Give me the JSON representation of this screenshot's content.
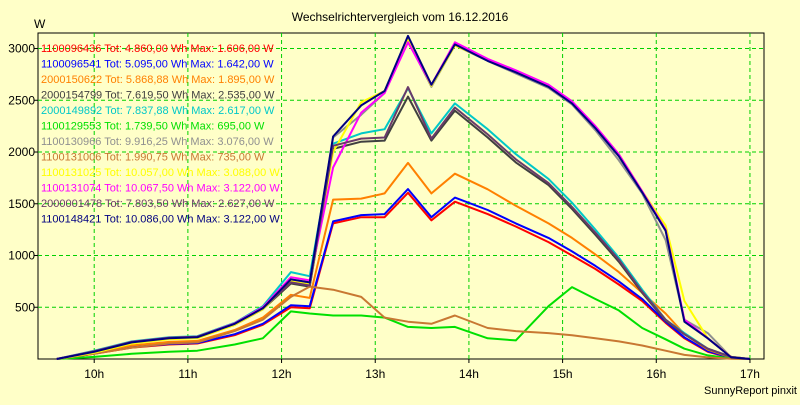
{
  "chart_data": {
    "type": "line",
    "title": "Wechselrichtervergleich vom 16.12.2016",
    "ylabel": "W",
    "xlabel": "",
    "footer": "SunnyReport pinxit",
    "x_range_hours": [
      9.4,
      17.15
    ],
    "ylim": [
      0,
      3150
    ],
    "x_ticks": [
      {
        "label": "10h",
        "hour": 10
      },
      {
        "label": "11h",
        "hour": 11
      },
      {
        "label": "12h",
        "hour": 12
      },
      {
        "label": "13h",
        "hour": 13
      },
      {
        "label": "14h",
        "hour": 14
      },
      {
        "label": "15h",
        "hour": 15
      },
      {
        "label": "16h",
        "hour": 16
      },
      {
        "label": "17h",
        "hour": 17
      }
    ],
    "y_ticks": [
      500,
      1000,
      1500,
      2000,
      2500,
      3000
    ],
    "grid": true,
    "legend_position": "top-left",
    "x": [
      9.6,
      10.0,
      10.4,
      10.8,
      11.1,
      11.5,
      11.8,
      12.1,
      12.3,
      12.55,
      12.85,
      13.1,
      13.35,
      13.6,
      13.85,
      14.2,
      14.5,
      14.85,
      15.1,
      15.35,
      15.6,
      15.85,
      16.1,
      16.3,
      16.55,
      16.8,
      17.0
    ],
    "series": [
      {
        "name": "1100096436",
        "legend": "1100096436 Tot: 4.860,00 Wh Max: 1.606,00 W",
        "color": "#ff0000",
        "values": [
          0,
          50,
          110,
          140,
          150,
          230,
          330,
          500,
          490,
          1310,
          1370,
          1370,
          1606,
          1340,
          1520,
          1400,
          1280,
          1130,
          1000,
          870,
          720,
          560,
          350,
          200,
          70,
          10,
          0
        ]
      },
      {
        "name": "1100096541",
        "legend": "1100096541 Tot: 5.095,00 Wh Max: 1.642,00 W",
        "color": "#0000ff",
        "values": [
          0,
          52,
          115,
          145,
          155,
          240,
          340,
          520,
          510,
          1330,
          1390,
          1400,
          1642,
          1370,
          1560,
          1440,
          1310,
          1170,
          1040,
          900,
          750,
          580,
          360,
          210,
          75,
          12,
          0
        ]
      },
      {
        "name": "2000150622",
        "legend": "2000150622 Tot: 5.868,88 Wh Max: 1.895,00 W",
        "color": "#ff8000",
        "values": [
          0,
          60,
          130,
          165,
          175,
          280,
          400,
          620,
          590,
          1540,
          1550,
          1600,
          1895,
          1600,
          1790,
          1640,
          1480,
          1310,
          1170,
          1010,
          840,
          640,
          440,
          240,
          90,
          15,
          0
        ]
      },
      {
        "name": "2000154799",
        "legend": "2000154799 Tot: 7.619,50 Wh Max: 2.535,00 W",
        "color": "#404040",
        "values": [
          0,
          70,
          160,
          200,
          210,
          330,
          480,
          730,
          700,
          2030,
          2100,
          2110,
          2535,
          2110,
          2400,
          2140,
          1900,
          1680,
          1450,
          1200,
          940,
          640,
          370,
          240,
          100,
          20,
          0
        ]
      },
      {
        "name": "2000149892",
        "legend": "2000149892 Tot: 7.837,88 Wh Max: 2.617,00 W",
        "color": "#00c8c8",
        "values": [
          0,
          80,
          170,
          210,
          220,
          350,
          510,
          840,
          800,
          2080,
          2180,
          2220,
          2617,
          2180,
          2470,
          2220,
          1980,
          1740,
          1510,
          1250,
          980,
          670,
          380,
          250,
          100,
          20,
          0
        ]
      },
      {
        "name": "1100129553",
        "legend": "1100129553 Tot: 1.739,50 Wh Max: 695,00 W",
        "color": "#00e000",
        "values": [
          0,
          20,
          50,
          70,
          80,
          140,
          200,
          460,
          440,
          420,
          420,
          400,
          310,
          300,
          310,
          200,
          180,
          510,
          695,
          580,
          470,
          300,
          190,
          100,
          35,
          5,
          0
        ]
      },
      {
        "name": "1100130966",
        "legend": "1100130966 Tot: 9.916,25 Wh Max: 3.076,00 W",
        "color": "#909090",
        "values": [
          0,
          70,
          160,
          200,
          210,
          330,
          480,
          760,
          720,
          2140,
          2360,
          2570,
          3076,
          2630,
          3030,
          2880,
          2760,
          2620,
          2460,
          2210,
          1920,
          1600,
          1150,
          380,
          250,
          15,
          0
        ]
      },
      {
        "name": "1100131006",
        "legend": "1100131006 Tot: 1.990,75 Wh Max: 735,00 W",
        "color": "#c87832",
        "values": [
          0,
          50,
          110,
          150,
          160,
          270,
          380,
          600,
          700,
          670,
          600,
          400,
          360,
          340,
          420,
          300,
          270,
          250,
          230,
          200,
          170,
          130,
          80,
          40,
          15,
          3,
          0
        ]
      },
      {
        "name": "1100131025",
        "legend": "1100131025 Tot: 10.057,00 Wh Max: 3.088,00 W",
        "color": "#ffff00",
        "values": [
          0,
          60,
          150,
          190,
          200,
          330,
          480,
          750,
          720,
          2000,
          2480,
          2590,
          3088,
          2640,
          3030,
          2890,
          2780,
          2640,
          2480,
          2240,
          1980,
          1620,
          1290,
          560,
          200,
          20,
          0
        ]
      },
      {
        "name": "1100131074",
        "legend": "1100131074 Tot: 10.067,50 Wh Max: 3.122,00 W",
        "color": "#ff00ff",
        "values": [
          0,
          75,
          165,
          205,
          215,
          345,
          500,
          790,
          760,
          1850,
          2380,
          2570,
          3060,
          2650,
          3060,
          2900,
          2790,
          2650,
          2490,
          2250,
          1980,
          1620,
          1250,
          380,
          200,
          18,
          0
        ]
      },
      {
        "name": "2000001478",
        "legend": "2000001478 Tot: 7.803,50 Wh Max: 2.627,00 W",
        "color": "#6a3a6a",
        "values": [
          0,
          75,
          165,
          205,
          215,
          340,
          490,
          740,
          710,
          2060,
          2130,
          2140,
          2627,
          2130,
          2430,
          2170,
          1930,
          1700,
          1470,
          1220,
          960,
          650,
          380,
          240,
          100,
          20,
          0
        ]
      },
      {
        "name": "1100148421",
        "legend": "1100148421 Tot: 10.086,00 Wh Max: 3.122,00 W",
        "color": "#000080",
        "values": [
          0,
          70,
          160,
          200,
          210,
          340,
          490,
          770,
          740,
          2150,
          2450,
          2590,
          3122,
          2650,
          3040,
          2880,
          2770,
          2630,
          2470,
          2230,
          1960,
          1610,
          1240,
          360,
          200,
          15,
          0
        ]
      }
    ]
  }
}
